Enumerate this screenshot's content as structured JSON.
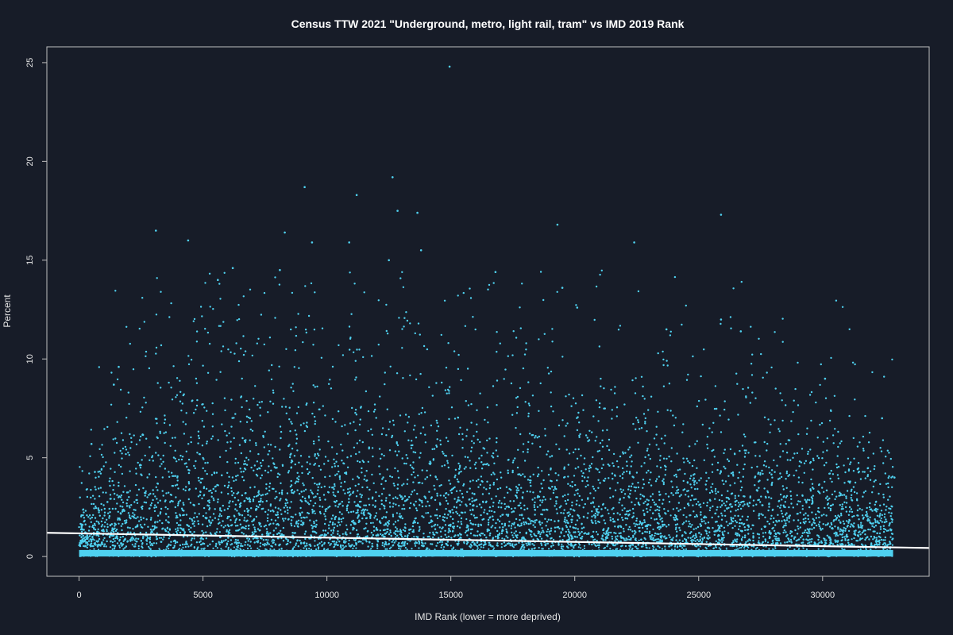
{
  "chart_data": {
    "type": "scatter",
    "title": "Census TTW 2021 \"Underground, metro, light rail, tram\" vs IMD 2019 Rank",
    "xlabel": "IMD Rank (lower = more deprived)",
    "ylabel": "Percent",
    "xlim": [
      -1300,
      34300
    ],
    "ylim": [
      -1.0,
      25.8
    ],
    "xticks": [
      0,
      5000,
      10000,
      15000,
      20000,
      25000,
      30000
    ],
    "xtick_labels": [
      "0",
      "5000",
      "10000",
      "15000",
      "20000",
      "25000",
      "30000"
    ],
    "yticks": [
      0,
      5,
      10,
      15,
      20,
      25
    ],
    "ytick_labels": [
      "0",
      "5",
      "10",
      "15",
      "20",
      "25"
    ],
    "point_color": "#4fd1f0",
    "line_color": "#ffffff",
    "background": "#171c28",
    "grid": false,
    "trend_line": {
      "x": [
        -1300,
        34300
      ],
      "y": [
        1.2,
        0.43
      ]
    },
    "notable_points": [
      {
        "x": 14950,
        "y": 24.8
      },
      {
        "x": 12650,
        "y": 19.2
      },
      {
        "x": 9100,
        "y": 18.7
      },
      {
        "x": 11200,
        "y": 18.3
      },
      {
        "x": 12850,
        "y": 17.5
      },
      {
        "x": 13650,
        "y": 17.4
      },
      {
        "x": 25900,
        "y": 17.3
      },
      {
        "x": 19300,
        "y": 16.8
      },
      {
        "x": 3100,
        "y": 16.5
      },
      {
        "x": 8300,
        "y": 16.4
      },
      {
        "x": 4400,
        "y": 16.0
      },
      {
        "x": 22400,
        "y": 15.9
      },
      {
        "x": 9400,
        "y": 15.9
      },
      {
        "x": 10900,
        "y": 15.9
      },
      {
        "x": 13800,
        "y": 15.5
      },
      {
        "x": 12500,
        "y": 15.0
      },
      {
        "x": 6200,
        "y": 14.6
      },
      {
        "x": 8100,
        "y": 14.5
      },
      {
        "x": 5600,
        "y": 14.0
      },
      {
        "x": 16800,
        "y": 14.4
      },
      {
        "x": 19500,
        "y": 13.6
      },
      {
        "x": 20100,
        "y": 12.6
      },
      {
        "x": 25900,
        "y": 12.0
      },
      {
        "x": 26700,
        "y": 11.4
      },
      {
        "x": 23700,
        "y": 11.5
      },
      {
        "x": 1600,
        "y": 9.6
      },
      {
        "x": 1400,
        "y": 8.7
      },
      {
        "x": 30100,
        "y": 9.0
      },
      {
        "x": 32400,
        "y": 7.0
      },
      {
        "x": 500,
        "y": 5.7
      },
      {
        "x": 32900,
        "y": 4.0
      }
    ],
    "distribution": {
      "x_range": [
        0,
        32844
      ],
      "dense_band_max_percent": 0.6,
      "cloud_peak_near_x": 9000,
      "cloud_typical_max_percent": 10
    }
  }
}
